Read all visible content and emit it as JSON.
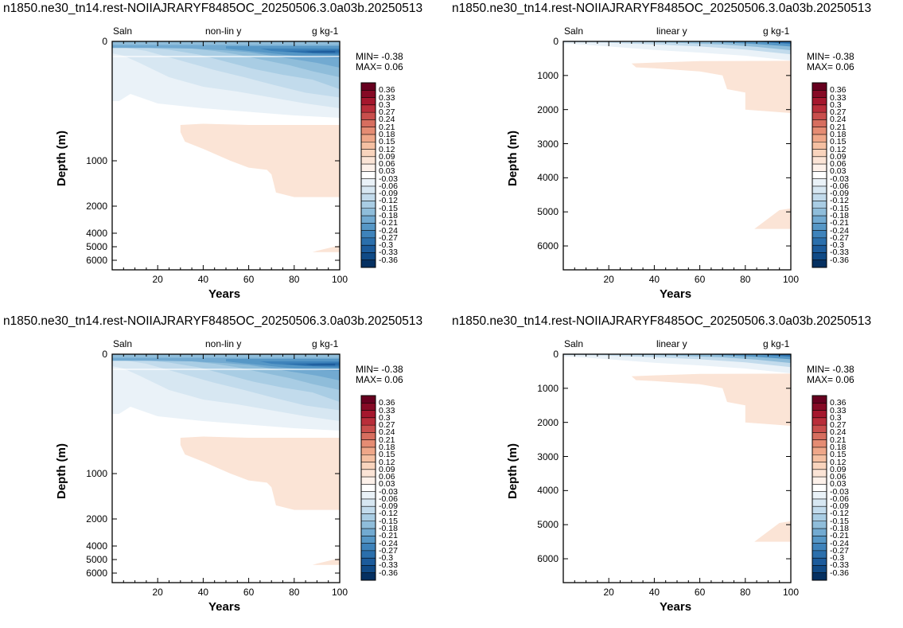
{
  "panel_title": "n1850.ne30_tn14.rest-NOIIAJRARYF8485OC_20250506.3.0a03b.20250513",
  "variable": "Saln",
  "units": "g kg-1",
  "stats": {
    "min": "MIN= -0.38",
    "max": "MAX=  0.06"
  },
  "colorbar_labels": [
    "0.36",
    "0.33",
    "0.3",
    "0.27",
    "0.24",
    "0.21",
    "0.18",
    "0.15",
    "0.12",
    "0.09",
    "0.06",
    "0.03",
    "-0.03",
    "-0.06",
    "-0.09",
    "-0.12",
    "-0.15",
    "-0.18",
    "-0.21",
    "-0.24",
    "-0.27",
    "-0.3",
    "-0.33",
    "-0.36"
  ],
  "colorbar_colors": [
    "#67001f",
    "#860a25",
    "#a5172d",
    "#b92e3a",
    "#c94e4c",
    "#d76e5f",
    "#e58c73",
    "#efa789",
    "#f5c0a2",
    "#f9d4bd",
    "#fbe4d6",
    "#fdf1ea",
    "#ffffff",
    "#eaf2f8",
    "#d7e7f2",
    "#c2dbec",
    "#a9cde4",
    "#8fbdda",
    "#72aad1",
    "#5697c6",
    "#3e83bb",
    "#2b6fac",
    "#1c5b9b",
    "#104a86",
    "#053061"
  ],
  "chart_data": [
    {
      "type": "heatmap",
      "panel": "top-left",
      "subtitle": "non-lin y",
      "xlabel": "Years",
      "ylabel": "Depth (m)",
      "xlim": [
        0,
        100
      ],
      "xticks": [
        20,
        40,
        60,
        80,
        100
      ],
      "yticks": [
        0,
        1000,
        2000,
        4000,
        5000,
        6000
      ],
      "yscale": "non-linear"
    },
    {
      "type": "heatmap",
      "panel": "top-right",
      "subtitle": "linear y",
      "xlabel": "Years",
      "ylabel": "Depth (m)",
      "xlim": [
        0,
        100
      ],
      "ylim": [
        0,
        6700
      ],
      "xticks": [
        20,
        40,
        60,
        80,
        100
      ],
      "yticks": [
        0,
        1000,
        2000,
        3000,
        4000,
        5000,
        6000
      ],
      "yscale": "linear"
    },
    {
      "type": "heatmap",
      "panel": "bottom-left",
      "subtitle": "non-lin y",
      "xlabel": "Years",
      "ylabel": "Depth (m)",
      "xlim": [
        0,
        100
      ],
      "xticks": [
        20,
        40,
        60,
        80,
        100
      ],
      "yticks": [
        0,
        1000,
        2000,
        4000,
        5000,
        6000
      ],
      "yscale": "non-linear"
    },
    {
      "type": "heatmap",
      "panel": "bottom-right",
      "subtitle": "linear y",
      "xlabel": "Years",
      "ylabel": "Depth (m)",
      "xlim": [
        0,
        100
      ],
      "ylim": [
        0,
        6700
      ],
      "xticks": [
        20,
        40,
        60,
        80,
        100
      ],
      "yticks": [
        0,
        1000,
        2000,
        3000,
        4000,
        5000,
        6000
      ],
      "yscale": "linear"
    }
  ]
}
